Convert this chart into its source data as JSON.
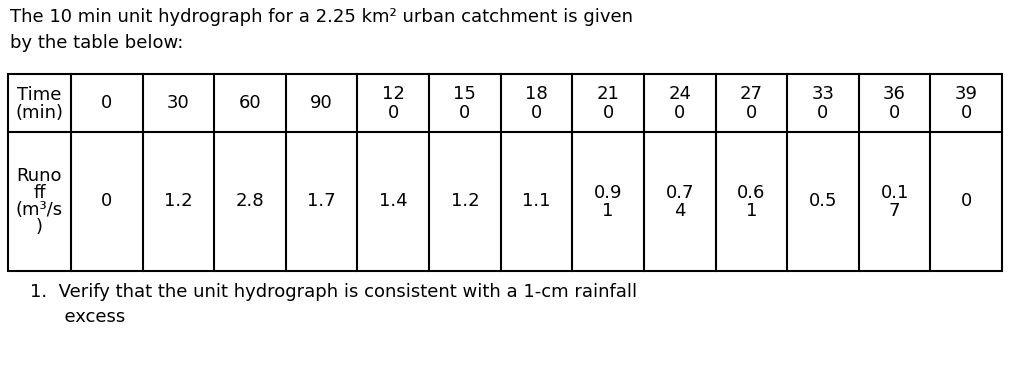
{
  "title_line1": "The 10 min unit hydrograph for a 2.25 km² urban catchment is given",
  "title_line2": "by the table below:",
  "time_header_line1": "Time",
  "time_header_line2": "(min)",
  "runoff_header_lines": [
    "Runo",
    "ff",
    "(m³/s",
    ")"
  ],
  "time_values": [
    "0",
    "30",
    "60",
    "90",
    "12\n0",
    "15\n0",
    "18\n0",
    "21\n0",
    "24\n0",
    "27\n0",
    "33\n0",
    "36\n0",
    "39\n0"
  ],
  "runoff_values": [
    "0",
    "1.2",
    "2.8",
    "1.7",
    "1.4",
    "1.2",
    "1.1",
    "0.9\n1",
    "0.7\n4",
    "0.6\n1",
    "0.5",
    "0.1\n7",
    "0"
  ],
  "footer_line1": "1.  Verify that the unit hydrograph is consistent with a 1-cm rainfall",
  "footer_line2": "      excess",
  "background_color": "#ffffff",
  "border_color": "#000000",
  "text_color": "#000000",
  "font_size": 13.0
}
